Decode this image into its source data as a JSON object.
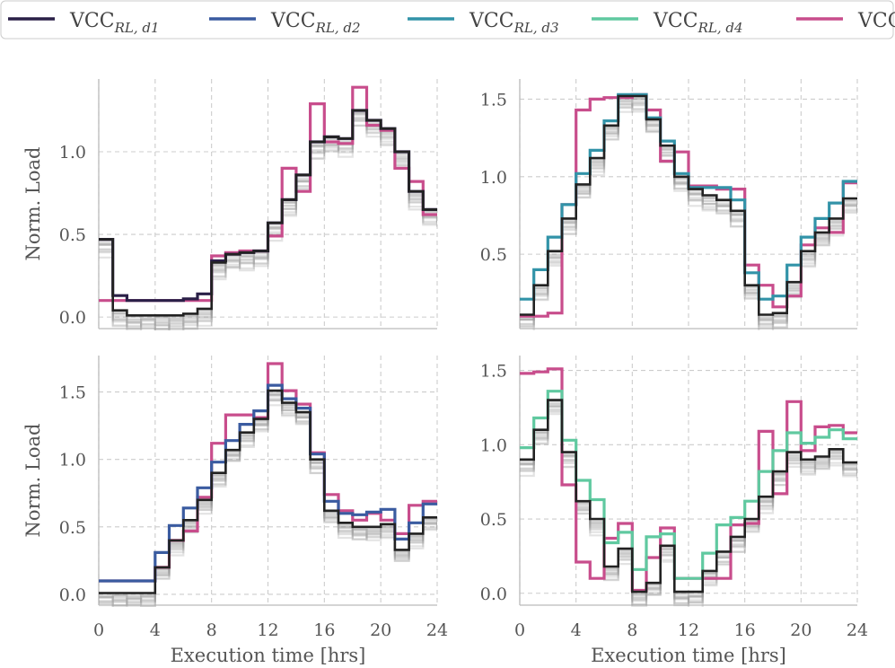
{
  "legend": {
    "placement": "top-center",
    "entries": [
      {
        "label_main": "VCC",
        "label_sub": "RL, d1",
        "color": "#2a1f47"
      },
      {
        "label_main": "VCC",
        "label_sub": "RL, d2",
        "color": "#3a5ba0"
      },
      {
        "label_main": "VCC",
        "label_sub": "RL, d3",
        "color": "#3293a8"
      },
      {
        "label_main": "VCC",
        "label_sub": "RL, d4",
        "color": "#60c9a0"
      },
      {
        "label_main": "VCC",
        "label_sub": "",
        "color": "#c84d8c"
      }
    ]
  },
  "chart_data": [
    {
      "type": "line",
      "step": "post",
      "panel": "top-left",
      "title": "",
      "xlabel": "",
      "ylabel": "Norm. Load",
      "xlim": [
        0,
        24
      ],
      "ylim": [
        -0.07,
        1.44
      ],
      "xticks": [
        0,
        4,
        8,
        12,
        16,
        20,
        24
      ],
      "yticks": [
        0.0,
        0.5,
        1.0
      ],
      "ytick_labels": [
        "0.0",
        "0.5",
        "1.0"
      ],
      "grid": true,
      "x": [
        0,
        1,
        2,
        3,
        4,
        5,
        6,
        7,
        8,
        9,
        10,
        11,
        12,
        13,
        14,
        15,
        16,
        17,
        18,
        19,
        20,
        21,
        22,
        23,
        24
      ],
      "series": [
        {
          "name": "VCC",
          "color": "#c84d8c",
          "values": [
            0.1,
            0.1,
            0.1,
            0.1,
            0.1,
            0.1,
            0.1,
            0.1,
            0.37,
            0.39,
            0.4,
            0.4,
            0.49,
            0.9,
            0.76,
            1.29,
            1.06,
            1.05,
            1.39,
            1.16,
            1.13,
            0.9,
            0.82,
            0.62,
            0.62
          ]
        },
        {
          "name": "VCC_RL_d1",
          "color": "#2a1f47",
          "values": [
            0.47,
            0.13,
            0.1,
            0.1,
            0.1,
            0.1,
            0.11,
            0.14,
            0.34,
            0.38,
            0.39,
            0.4,
            0.57,
            0.71,
            0.86,
            1.06,
            1.09,
            1.08,
            1.25,
            1.19,
            1.14,
            1.0,
            0.76,
            0.65,
            0.65
          ]
        },
        {
          "name": "sample_black",
          "color": "#222222",
          "values": [
            0.47,
            0.04,
            0.01,
            0.01,
            0.01,
            0.01,
            0.02,
            0.05,
            0.33,
            0.38,
            0.39,
            0.4,
            0.57,
            0.71,
            0.86,
            1.06,
            1.09,
            1.08,
            1.25,
            1.19,
            1.14,
            1.0,
            0.76,
            0.65,
            0.65
          ]
        }
      ],
      "gray_runs": 12
    },
    {
      "type": "line",
      "step": "post",
      "panel": "top-right",
      "title": "",
      "xlabel": "",
      "ylabel": "",
      "xlim": [
        0,
        24
      ],
      "ylim": [
        0.02,
        1.63
      ],
      "xticks": [
        0,
        4,
        8,
        12,
        16,
        20,
        24
      ],
      "yticks": [
        0.5,
        1.0,
        1.5
      ],
      "ytick_labels": [
        "0.5",
        "1.0",
        "1.5"
      ],
      "grid": true,
      "x": [
        0,
        1,
        2,
        3,
        4,
        5,
        6,
        7,
        8,
        9,
        10,
        11,
        12,
        13,
        14,
        15,
        16,
        17,
        18,
        19,
        20,
        21,
        22,
        23,
        24
      ],
      "series": [
        {
          "name": "VCC",
          "color": "#c84d8c",
          "values": [
            0.1,
            0.1,
            0.12,
            0.82,
            1.43,
            1.5,
            1.51,
            1.51,
            1.53,
            1.43,
            1.1,
            1.16,
            0.94,
            0.94,
            0.92,
            0.92,
            0.43,
            0.3,
            0.16,
            0.23,
            0.56,
            0.67,
            0.64,
            0.96,
            0.96
          ]
        },
        {
          "name": "VCC_RL_d3",
          "color": "#3293a8",
          "values": [
            0.21,
            0.4,
            0.61,
            0.82,
            1.02,
            1.17,
            1.36,
            1.53,
            1.53,
            1.38,
            1.23,
            1.02,
            0.93,
            0.93,
            0.93,
            0.85,
            0.38,
            0.21,
            0.23,
            0.43,
            0.61,
            0.73,
            0.83,
            0.97,
            0.97
          ]
        },
        {
          "name": "sample_black",
          "color": "#222222",
          "values": [
            0.11,
            0.3,
            0.52,
            0.73,
            0.95,
            1.12,
            1.33,
            1.52,
            1.52,
            1.37,
            1.2,
            1.0,
            0.92,
            0.88,
            0.85,
            0.78,
            0.3,
            0.11,
            0.12,
            0.32,
            0.52,
            0.64,
            0.73,
            0.86,
            0.86
          ]
        }
      ],
      "gray_runs": 12
    },
    {
      "type": "line",
      "step": "post",
      "panel": "bottom-left",
      "title": "",
      "xlabel": "Execution time [hrs]",
      "ylabel": "Norm. Load",
      "xlim": [
        0,
        24
      ],
      "ylim": [
        -0.08,
        1.77
      ],
      "xticks": [
        0,
        4,
        8,
        12,
        16,
        20,
        24
      ],
      "xtick_labels": [
        "0",
        "4",
        "8",
        "12",
        "16",
        "20",
        "24"
      ],
      "yticks": [
        0.0,
        0.5,
        1.0,
        1.5
      ],
      "ytick_labels": [
        "0.0",
        "0.5",
        "1.0",
        "1.5"
      ],
      "grid": true,
      "x": [
        0,
        1,
        2,
        3,
        4,
        5,
        6,
        7,
        8,
        9,
        10,
        11,
        12,
        13,
        14,
        15,
        16,
        17,
        18,
        19,
        20,
        21,
        22,
        23,
        24
      ],
      "series": [
        {
          "name": "VCC",
          "color": "#c84d8c",
          "values": [
            0.1,
            0.1,
            0.1,
            0.1,
            0.2,
            0.4,
            0.47,
            0.72,
            1.12,
            1.33,
            1.33,
            1.31,
            1.71,
            1.51,
            1.41,
            1.05,
            0.74,
            0.62,
            0.55,
            0.6,
            0.55,
            0.45,
            0.66,
            0.69,
            0.69
          ]
        },
        {
          "name": "VCC_RL_d2",
          "color": "#3a5ba0",
          "values": [
            0.1,
            0.1,
            0.1,
            0.1,
            0.31,
            0.51,
            0.64,
            0.79,
            0.98,
            1.14,
            1.26,
            1.36,
            1.55,
            1.45,
            1.38,
            1.04,
            0.69,
            0.6,
            0.59,
            0.61,
            0.63,
            0.41,
            0.53,
            0.67,
            0.67
          ]
        },
        {
          "name": "sample_black",
          "color": "#222222",
          "values": [
            0.01,
            0.01,
            0.01,
            0.01,
            0.2,
            0.4,
            0.55,
            0.7,
            0.9,
            1.07,
            1.2,
            1.3,
            1.51,
            1.42,
            1.35,
            1.0,
            0.62,
            0.53,
            0.5,
            0.5,
            0.52,
            0.33,
            0.45,
            0.57,
            0.57
          ]
        }
      ],
      "gray_runs": 12
    },
    {
      "type": "line",
      "step": "post",
      "panel": "bottom-right",
      "title": "",
      "xlabel": "Execution time [hrs]",
      "ylabel": "",
      "xlim": [
        0,
        24
      ],
      "ylim": [
        -0.08,
        1.6
      ],
      "xticks": [
        0,
        4,
        8,
        12,
        16,
        20,
        24
      ],
      "xtick_labels": [
        "0",
        "4",
        "8",
        "12",
        "16",
        "20",
        "24"
      ],
      "yticks": [
        0.0,
        0.5,
        1.0,
        1.5
      ],
      "ytick_labels": [
        "0.0",
        "0.5",
        "1.0",
        "1.5"
      ],
      "grid": true,
      "x": [
        0,
        1,
        2,
        3,
        4,
        5,
        6,
        7,
        8,
        9,
        10,
        11,
        12,
        13,
        14,
        15,
        16,
        17,
        18,
        19,
        20,
        21,
        22,
        23,
        24
      ],
      "series": [
        {
          "name": "VCC",
          "color": "#c84d8c",
          "values": [
            1.48,
            1.49,
            1.51,
            0.73,
            0.21,
            0.1,
            0.37,
            0.47,
            0.02,
            0.24,
            0.44,
            0.1,
            0.1,
            0.1,
            0.1,
            0.46,
            0.47,
            1.09,
            0.67,
            1.29,
            0.96,
            1.12,
            1.13,
            1.08,
            1.08
          ]
        },
        {
          "name": "VCC_RL_d4",
          "color": "#60c9a0",
          "values": [
            0.98,
            1.18,
            1.36,
            1.03,
            0.76,
            0.63,
            0.34,
            0.41,
            0.16,
            0.38,
            0.4,
            0.1,
            0.1,
            0.27,
            0.46,
            0.51,
            0.62,
            0.82,
            0.96,
            1.08,
            1.01,
            1.05,
            1.1,
            1.04,
            1.04
          ]
        },
        {
          "name": "sample_black",
          "color": "#222222",
          "values": [
            0.9,
            1.1,
            1.3,
            0.95,
            0.62,
            0.5,
            0.18,
            0.3,
            0.01,
            0.07,
            0.32,
            0.01,
            0.01,
            0.15,
            0.28,
            0.38,
            0.5,
            0.65,
            0.82,
            0.95,
            0.9,
            0.92,
            0.97,
            0.88,
            0.88
          ]
        }
      ],
      "gray_runs": 12
    }
  ]
}
